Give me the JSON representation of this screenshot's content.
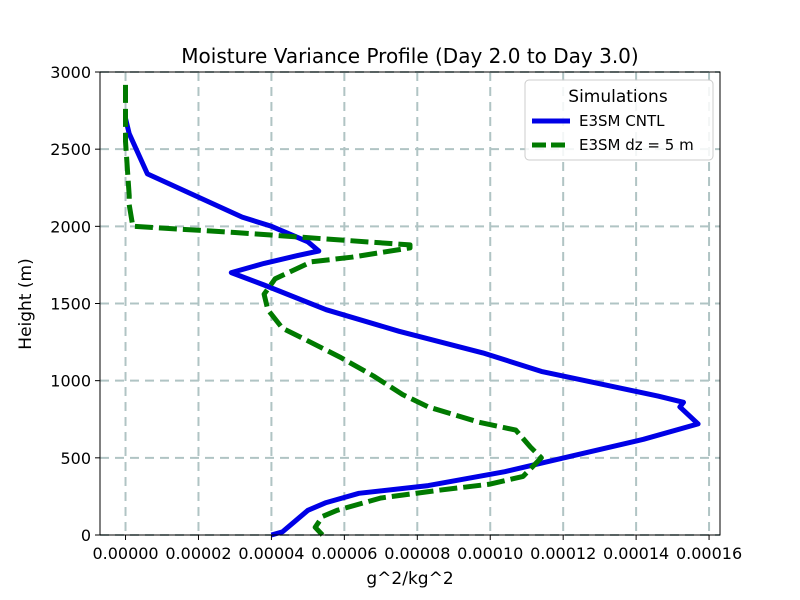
{
  "chart_data": {
    "type": "line",
    "title": "Moisture Variance Profile (Day 2.0 to Day 3.0)",
    "xlabel": "g^2/kg^2",
    "ylabel": "Height (m)",
    "xlim": [
      -7e-06,
      0.000163
    ],
    "ylim": [
      0,
      3000
    ],
    "xticks": [
      0.0,
      2e-05,
      4e-05,
      6e-05,
      8e-05,
      0.0001,
      0.00012,
      0.00014,
      0.00016
    ],
    "xtick_labels": [
      "0.00000",
      "0.00002",
      "0.00004",
      "0.00006",
      "0.00008",
      "0.00010",
      "0.00012",
      "0.00014",
      "0.00016"
    ],
    "yticks": [
      0,
      500,
      1000,
      1500,
      2000,
      2500,
      3000
    ],
    "ytick_labels": [
      "0",
      "500",
      "1000",
      "1500",
      "2000",
      "2500",
      "3000"
    ],
    "grid": true,
    "legend": {
      "title": "Simulations",
      "position": "upper right"
    },
    "series": [
      {
        "name": "E3SM CNTL",
        "color": "#0000e6",
        "style": "solid",
        "x": [
          4e-05,
          4.3e-05,
          4.6e-05,
          5e-05,
          5.5e-05,
          6.4e-05,
          8.3e-05,
          0.000104,
          0.000122,
          0.000142,
          0.000157,
          0.000152,
          0.000153,
          0.000146,
          0.000134,
          0.000114,
          9.8e-05,
          7.5e-05,
          5.5e-05,
          3.8e-05,
          2.9e-05,
          3.8e-05,
          4.7e-05,
          5.3e-05,
          5e-05,
          4e-05,
          3.2e-05,
          1.9e-05,
          6e-06,
          1e-06,
          0.0
        ],
        "y": [
          0,
          20,
          80,
          160,
          210,
          270,
          320,
          410,
          510,
          620,
          720,
          830,
          860,
          900,
          960,
          1060,
          1180,
          1320,
          1460,
          1620,
          1700,
          1760,
          1810,
          1840,
          1900,
          2000,
          2060,
          2200,
          2340,
          2600,
          2700
        ]
      },
      {
        "name": "E3SM dz = 5 m",
        "color": "#007a00",
        "style": "dashed",
        "x": [
          5.4e-05,
          5.2e-05,
          5.4e-05,
          5.8e-05,
          7e-05,
          8.6e-05,
          0.0001,
          0.000109,
          0.000114,
          0.000111,
          0.000107,
          9.7e-05,
          8.3e-05,
          7.6e-05,
          6.8e-05,
          5.9e-05,
          4.9e-05,
          4.3e-05,
          3.9e-05,
          3.8e-05,
          4.1e-05,
          5.1e-05,
          6.2e-05,
          7.8e-05,
          7.8e-05,
          3e-05,
          2e-06,
          1e-06,
          1e-06,
          0.0,
          0.0,
          0.0
        ],
        "y": [
          0,
          50,
          120,
          160,
          240,
          290,
          330,
          380,
          500,
          570,
          680,
          730,
          830,
          910,
          1030,
          1150,
          1270,
          1340,
          1460,
          1560,
          1660,
          1770,
          1800,
          1860,
          1880,
          1960,
          2000,
          2140,
          2200,
          2550,
          2800,
          2920
        ]
      }
    ]
  }
}
